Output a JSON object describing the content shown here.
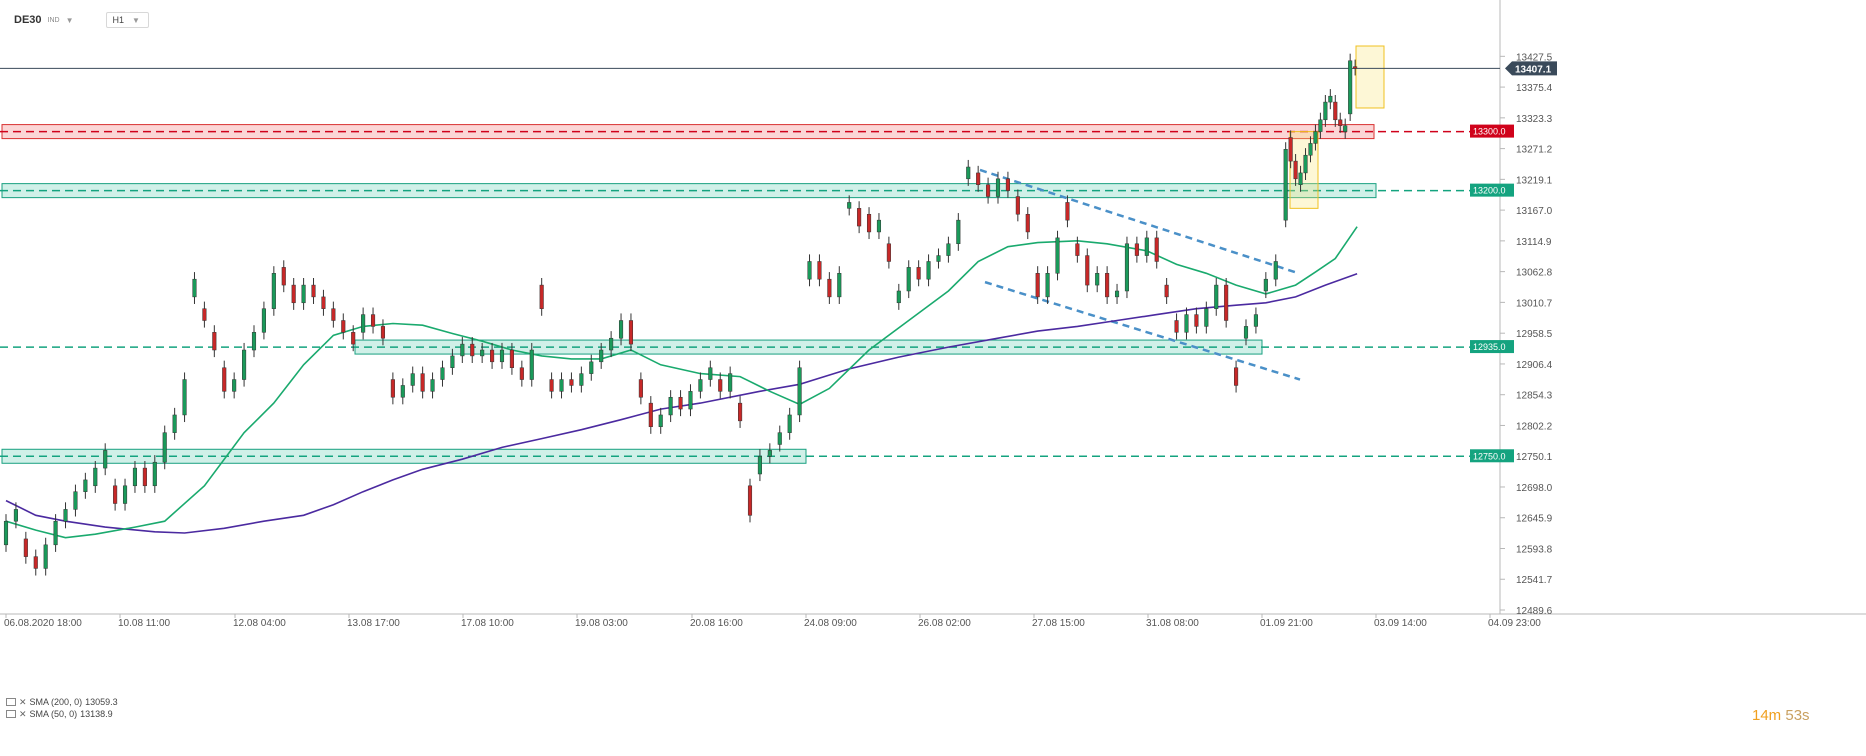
{
  "header": {
    "symbol": "DE30",
    "asset_class": "IND",
    "timeframe": "H1"
  },
  "timer": {
    "minutes": "14m",
    "seconds": "53s"
  },
  "legend": [
    {
      "name": "SMA (200, 0)",
      "value": "13059.3"
    },
    {
      "name": "SMA (50, 0)",
      "value": "13138.9"
    }
  ],
  "chart_data": {
    "type": "candlestick",
    "symbol": "DE30",
    "timeframe": "H1",
    "ylim": [
      12489.6,
      13445.0
    ],
    "y_ticks": [
      "13427.5",
      "13375.4",
      "13323.3",
      "13271.2",
      "13219.1",
      "13167.0",
      "13114.9",
      "13062.8",
      "13010.7",
      "12958.5",
      "12906.4",
      "12854.3",
      "12802.2",
      "12750.1",
      "12698.0",
      "12645.9",
      "12593.8",
      "12541.7",
      "12489.6"
    ],
    "x_ticks": [
      "06.08.2020 18:00",
      "10.08 11:00",
      "12.08 04:00",
      "13.08 17:00",
      "17.08 10:00",
      "19.08 03:00",
      "20.08 16:00",
      "24.08 09:00",
      "26.08 02:00",
      "27.08 15:00",
      "31.08 08:00",
      "01.09 21:00",
      "03.09 14:00",
      "04.09 23:00"
    ],
    "last_price": "13407.1",
    "levels": [
      {
        "label": "13300.0",
        "value": 13300.0,
        "color": "#d0021b"
      },
      {
        "label": "13200.0",
        "value": 13200.0,
        "color": "#14a37f"
      },
      {
        "label": "12935.0",
        "value": 12935.0,
        "color": "#14a37f"
      },
      {
        "label": "12750.0",
        "value": 12750.0,
        "color": "#14a37f"
      }
    ],
    "sma200_path": [
      [
        0,
        12675
      ],
      [
        30,
        12650
      ],
      [
        60,
        12640
      ],
      [
        100,
        12630
      ],
      [
        150,
        12622
      ],
      [
        180,
        12620
      ],
      [
        220,
        12628
      ],
      [
        260,
        12640
      ],
      [
        300,
        12650
      ],
      [
        330,
        12668
      ],
      [
        360,
        12690
      ],
      [
        390,
        12710
      ],
      [
        420,
        12728
      ],
      [
        460,
        12745
      ],
      [
        500,
        12765
      ],
      [
        540,
        12780
      ],
      [
        580,
        12795
      ],
      [
        620,
        12812
      ],
      [
        660,
        12830
      ],
      [
        700,
        12840
      ],
      [
        760,
        12860
      ],
      [
        800,
        12872
      ],
      [
        850,
        12898
      ],
      [
        900,
        12918
      ],
      [
        950,
        12935
      ],
      [
        1000,
        12950
      ],
      [
        1040,
        12962
      ],
      [
        1080,
        12970
      ],
      [
        1120,
        12980
      ],
      [
        1160,
        12990
      ],
      [
        1200,
        13000
      ],
      [
        1240,
        13006
      ],
      [
        1270,
        13010
      ],
      [
        1300,
        13020
      ],
      [
        1330,
        13040
      ],
      [
        1362,
        13059.3
      ]
    ],
    "sma50_path": [
      [
        0,
        12640
      ],
      [
        30,
        12625
      ],
      [
        60,
        12612
      ],
      [
        90,
        12618
      ],
      [
        130,
        12630
      ],
      [
        160,
        12640
      ],
      [
        200,
        12700
      ],
      [
        240,
        12790
      ],
      [
        270,
        12840
      ],
      [
        300,
        12905
      ],
      [
        330,
        12955
      ],
      [
        360,
        12970
      ],
      [
        390,
        12975
      ],
      [
        420,
        12972
      ],
      [
        450,
        12958
      ],
      [
        480,
        12945
      ],
      [
        510,
        12930
      ],
      [
        540,
        12920
      ],
      [
        570,
        12915
      ],
      [
        600,
        12915
      ],
      [
        630,
        12930
      ],
      [
        660,
        12905
      ],
      [
        700,
        12890
      ],
      [
        740,
        12885
      ],
      [
        770,
        12860
      ],
      [
        800,
        12838
      ],
      [
        830,
        12865
      ],
      [
        870,
        12930
      ],
      [
        910,
        12980
      ],
      [
        950,
        13030
      ],
      [
        980,
        13080
      ],
      [
        1010,
        13105
      ],
      [
        1040,
        13112
      ],
      [
        1080,
        13115
      ],
      [
        1110,
        13110
      ],
      [
        1150,
        13098
      ],
      [
        1180,
        13075
      ],
      [
        1210,
        13060
      ],
      [
        1240,
        13040
      ],
      [
        1270,
        13025
      ],
      [
        1300,
        13040
      ],
      [
        1320,
        13062
      ],
      [
        1340,
        13085
      ],
      [
        1362,
        13138.9
      ]
    ],
    "candles": [
      [
        0,
        12600,
        12640
      ],
      [
        10,
        12640,
        12660
      ],
      [
        20,
        12610,
        12580
      ],
      [
        30,
        12580,
        12560
      ],
      [
        40,
        12560,
        12600
      ],
      [
        50,
        12600,
        12640
      ],
      [
        60,
        12640,
        12660
      ],
      [
        70,
        12660,
        12690
      ],
      [
        80,
        12690,
        12710
      ],
      [
        90,
        12700,
        12730
      ],
      [
        100,
        12730,
        12760
      ],
      [
        110,
        12700,
        12670
      ],
      [
        120,
        12670,
        12700
      ],
      [
        130,
        12700,
        12730
      ],
      [
        140,
        12730,
        12700
      ],
      [
        150,
        12700,
        12740
      ],
      [
        160,
        12740,
        12790
      ],
      [
        170,
        12790,
        12820
      ],
      [
        180,
        12820,
        12880
      ],
      [
        190,
        13020,
        13050
      ],
      [
        200,
        13000,
        12980
      ],
      [
        210,
        12960,
        12930
      ],
      [
        220,
        12900,
        12860
      ],
      [
        230,
        12860,
        12880
      ],
      [
        240,
        12880,
        12930
      ],
      [
        250,
        12930,
        12960
      ],
      [
        260,
        12960,
        13000
      ],
      [
        270,
        13000,
        13060
      ],
      [
        280,
        13070,
        13040
      ],
      [
        290,
        13040,
        13010
      ],
      [
        300,
        13010,
        13040
      ],
      [
        310,
        13040,
        13020
      ],
      [
        320,
        13020,
        13000
      ],
      [
        330,
        13000,
        12980
      ],
      [
        340,
        12980,
        12960
      ],
      [
        350,
        12960,
        12940
      ],
      [
        360,
        12960,
        12990
      ],
      [
        370,
        12990,
        12970
      ],
      [
        380,
        12970,
        12950
      ],
      [
        390,
        12880,
        12850
      ],
      [
        400,
        12850,
        12870
      ],
      [
        410,
        12870,
        12890
      ],
      [
        420,
        12890,
        12860
      ],
      [
        430,
        12860,
        12880
      ],
      [
        440,
        12880,
        12900
      ],
      [
        450,
        12900,
        12920
      ],
      [
        460,
        12920,
        12940
      ],
      [
        470,
        12940,
        12920
      ],
      [
        480,
        12920,
        12930
      ],
      [
        490,
        12930,
        12910
      ],
      [
        500,
        12910,
        12930
      ],
      [
        510,
        12930,
        12900
      ],
      [
        520,
        12900,
        12880
      ],
      [
        530,
        12880,
        12930
      ],
      [
        540,
        13040,
        13000
      ],
      [
        550,
        12880,
        12860
      ],
      [
        560,
        12860,
        12880
      ],
      [
        570,
        12880,
        12870
      ],
      [
        580,
        12870,
        12890
      ],
      [
        590,
        12890,
        12910
      ],
      [
        600,
        12910,
        12930
      ],
      [
        610,
        12930,
        12950
      ],
      [
        620,
        12950,
        12980
      ],
      [
        630,
        12980,
        12940
      ],
      [
        640,
        12880,
        12850
      ],
      [
        650,
        12840,
        12800
      ],
      [
        660,
        12800,
        12820
      ],
      [
        670,
        12820,
        12850
      ],
      [
        680,
        12850,
        12830
      ],
      [
        690,
        12830,
        12860
      ],
      [
        700,
        12860,
        12880
      ],
      [
        710,
        12880,
        12900
      ],
      [
        720,
        12880,
        12860
      ],
      [
        730,
        12860,
        12890
      ],
      [
        740,
        12840,
        12810
      ],
      [
        750,
        12700,
        12650
      ],
      [
        760,
        12720,
        12750
      ],
      [
        770,
        12750,
        12760
      ],
      [
        780,
        12770,
        12790
      ],
      [
        790,
        12790,
        12820
      ],
      [
        800,
        12820,
        12900
      ],
      [
        810,
        13050,
        13080
      ],
      [
        820,
        13080,
        13050
      ],
      [
        830,
        13050,
        13020
      ],
      [
        840,
        13020,
        13060
      ],
      [
        850,
        13170,
        13180
      ],
      [
        860,
        13170,
        13140
      ],
      [
        870,
        13160,
        13130
      ],
      [
        880,
        13130,
        13150
      ],
      [
        890,
        13110,
        13080
      ],
      [
        900,
        13010,
        13030
      ],
      [
        910,
        13030,
        13070
      ],
      [
        920,
        13070,
        13050
      ],
      [
        930,
        13050,
        13080
      ],
      [
        940,
        13080,
        13090
      ],
      [
        950,
        13090,
        13110
      ],
      [
        960,
        13110,
        13150
      ],
      [
        970,
        13220,
        13240
      ],
      [
        980,
        13230,
        13210
      ],
      [
        990,
        13210,
        13190
      ],
      [
        1000,
        13190,
        13220
      ],
      [
        1010,
        13220,
        13200
      ],
      [
        1020,
        13190,
        13160
      ],
      [
        1030,
        13160,
        13130
      ],
      [
        1040,
        13060,
        13020
      ],
      [
        1050,
        13020,
        13060
      ],
      [
        1060,
        13060,
        13120
      ],
      [
        1070,
        13180,
        13150
      ],
      [
        1080,
        13110,
        13090
      ],
      [
        1090,
        13090,
        13040
      ],
      [
        1100,
        13040,
        13060
      ],
      [
        1110,
        13060,
        13020
      ],
      [
        1120,
        13020,
        13030
      ],
      [
        1130,
        13030,
        13110
      ],
      [
        1140,
        13110,
        13090
      ],
      [
        1150,
        13090,
        13120
      ],
      [
        1160,
        13120,
        13080
      ],
      [
        1170,
        13040,
        13020
      ],
      [
        1180,
        12980,
        12960
      ],
      [
        1190,
        12960,
        12990
      ],
      [
        1200,
        12990,
        12970
      ],
      [
        1210,
        12970,
        13000
      ],
      [
        1220,
        13000,
        13040
      ],
      [
        1230,
        13040,
        12980
      ],
      [
        1240,
        12900,
        12870
      ],
      [
        1250,
        12950,
        12970
      ],
      [
        1260,
        12970,
        12990
      ],
      [
        1270,
        13030,
        13050
      ],
      [
        1280,
        13050,
        13080
      ],
      [
        1290,
        13150,
        13270
      ],
      [
        1295,
        13290,
        13250
      ],
      [
        1300,
        13250,
        13220
      ],
      [
        1305,
        13210,
        13230
      ],
      [
        1310,
        13230,
        13260
      ],
      [
        1315,
        13260,
        13280
      ],
      [
        1320,
        13280,
        13300
      ],
      [
        1325,
        13300,
        13320
      ],
      [
        1330,
        13320,
        13350
      ],
      [
        1335,
        13350,
        13360
      ],
      [
        1340,
        13350,
        13320
      ],
      [
        1345,
        13320,
        13310
      ],
      [
        1350,
        13300,
        13310
      ],
      [
        1355,
        13330,
        13420
      ],
      [
        1360,
        13410,
        13407.1
      ]
    ]
  }
}
